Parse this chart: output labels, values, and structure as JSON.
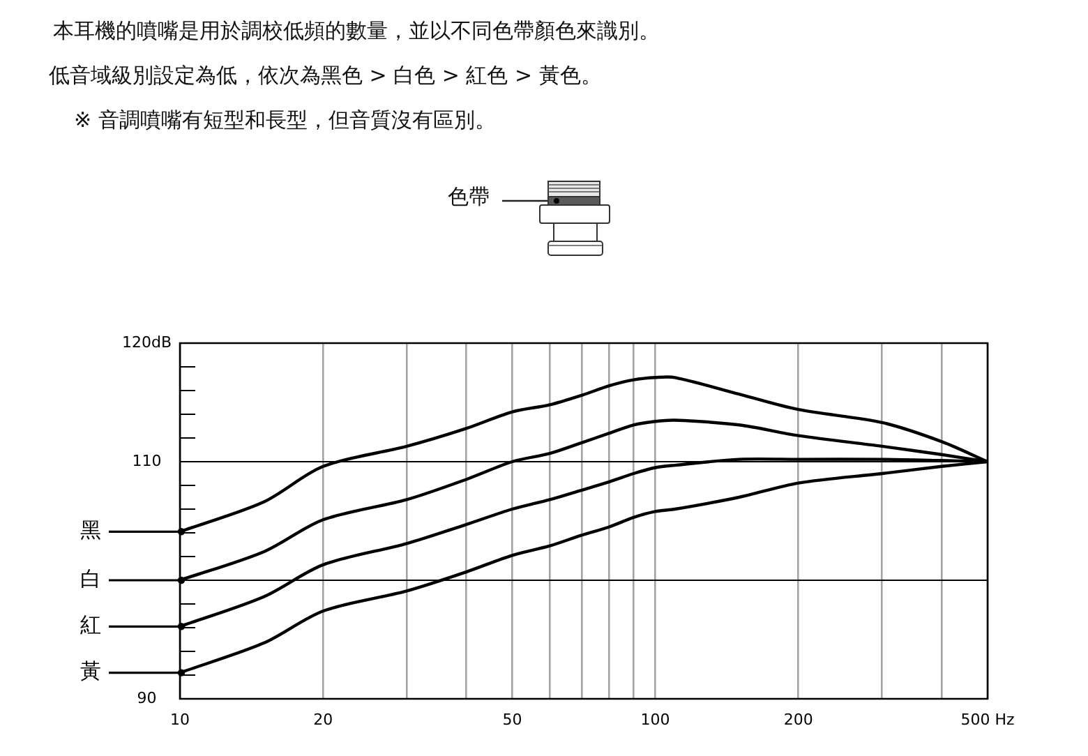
{
  "chart_data": {
    "type": "line",
    "annotations": [
      "本耳機的噴嘴是用於調校低頻的數量，並以不同色帶顏色來識別。",
      "低音域級別設定為低，依次為黑色 > 白色 > 紅色 > 黃色。",
      "※ 音調噴嘴有短型和長型，但音質沒有區別。",
      "色帶"
    ],
    "x": [
      10,
      15,
      20,
      30,
      40,
      50,
      60,
      70,
      80,
      90,
      100,
      110,
      150,
      200,
      300,
      400,
      500
    ],
    "series": [
      {
        "name": "黑",
        "color": "#000000",
        "values": [
          104.1,
          106.6,
          109.6,
          111.3,
          112.8,
          114.2,
          114.8,
          115.6,
          116.4,
          116.9,
          117.1,
          117.1,
          115.7,
          114.4,
          113.3,
          111.7,
          110
        ]
      },
      {
        "name": "白",
        "color": "#000000",
        "values": [
          100,
          102.4,
          105.1,
          106.8,
          108.5,
          110,
          110.7,
          111.6,
          112.4,
          113.1,
          113.4,
          113.5,
          113.1,
          112.2,
          111.3,
          110.6,
          110
        ]
      },
      {
        "name": "紅",
        "color": "#000000",
        "values": [
          96.1,
          98.6,
          101.3,
          103.1,
          104.7,
          106,
          106.8,
          107.6,
          108.3,
          109,
          109.5,
          109.7,
          110.2,
          110.2,
          110.2,
          110.1,
          110
        ]
      },
      {
        "name": "黃",
        "color": "#000000",
        "values": [
          92.2,
          94.7,
          97.4,
          99.1,
          100.7,
          102.1,
          102.9,
          103.8,
          104.5,
          105.3,
          105.8,
          106,
          107,
          108.2,
          109,
          109.6,
          110
        ]
      }
    ],
    "log": "x",
    "xlim": [
      10,
      500
    ],
    "xticks": [
      10,
      20,
      {
        "value": 30,
        "label": null
      },
      {
        "value": 40,
        "label": null
      },
      50,
      {
        "value": 60,
        "label": null
      },
      {
        "value": 70,
        "label": null
      },
      {
        "value": 80,
        "label": null
      },
      {
        "value": 90,
        "label": null
      },
      100,
      200,
      {
        "value": 300,
        "label": null
      },
      {
        "value": 400,
        "label": null
      },
      {
        "value": 500,
        "label": "500 Hz"
      }
    ],
    "ylim": [
      90,
      120
    ],
    "yticks": [
      90,
      {
        "value": 92,
        "label": null
      },
      {
        "value": 94,
        "label": null
      },
      {
        "value": 96,
        "label": null
      },
      {
        "value": 98,
        "label": null
      },
      {
        "value": 100,
        "label": null
      },
      {
        "value": 102,
        "label": null
      },
      {
        "value": 104,
        "label": null
      },
      {
        "value": 106,
        "label": null
      },
      {
        "value": 108,
        "label": null
      },
      110,
      {
        "value": 112,
        "label": null
      },
      {
        "value": 114,
        "label": null
      },
      {
        "value": 116,
        "label": null
      },
      {
        "value": 118,
        "label": null
      },
      {
        "value": 120,
        "label": "120dB"
      }
    ],
    "grid": "x",
    "legend": "left",
    "ref_lines": [
      {
        "axis": "y",
        "value": 110,
        "color": "#000000"
      },
      {
        "axis": "y",
        "value": 100,
        "color": "#000000"
      }
    ]
  }
}
